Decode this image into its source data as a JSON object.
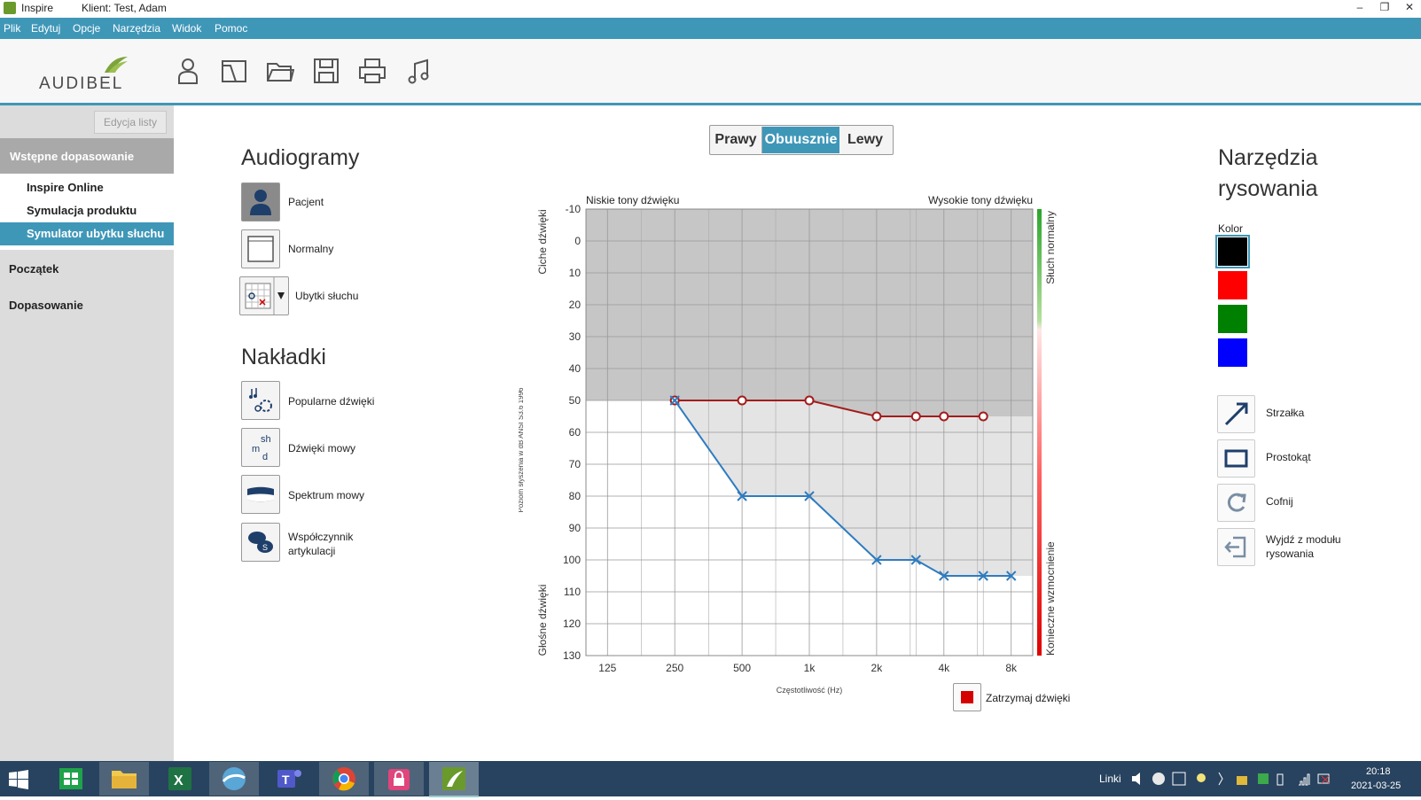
{
  "titlebar": {
    "app": "Inspire",
    "client": "Klient:  Test, Adam"
  },
  "menu": [
    "Plik",
    "Edytuj",
    "Opcje",
    "Narzędzia",
    "Widok",
    "Pomoc"
  ],
  "toolbar": {
    "logo": "AUDIBEL",
    "icons": [
      "user-icon",
      "frame-icon",
      "folder-icon",
      "save-icon",
      "print-icon",
      "music-note-icon"
    ]
  },
  "sidebar": {
    "edit_list": "Edycja listy",
    "section": "Wstępne dopasowanie",
    "items": [
      "Inspire Online",
      "Symulacja produktu",
      "Symulator ubytku słuchu"
    ],
    "start": "Początek",
    "fitting": "Dopasowanie"
  },
  "audiograms": {
    "title": "Audiogramy",
    "items": [
      "Pacjent",
      "Normalny",
      "Ubytki słuchu"
    ]
  },
  "overlays": {
    "title": "Nakładki",
    "items": [
      "Popularne dźwięki",
      "Dźwięki mowy",
      "Spektrum mowy",
      "Współczynnik artykulacji"
    ]
  },
  "ear_selector": {
    "right": "Prawy",
    "both": "Obuusznie",
    "left": "Lewy",
    "selected": "Obuusznie"
  },
  "chart_data": {
    "type": "line",
    "top_left_label": "Niskie tony dźwięku",
    "top_right_label": "Wysokie tony dźwięku",
    "y_top_label": "Ciche dźwięki",
    "y_bottom_label": "Głośne dźwięki",
    "y_axis_label": "Poziom słyszenia w dB ANSI S3.6 1996",
    "xlabel": "Częstotliwość (Hz)",
    "right_top_label": "Słuch normalny",
    "right_bottom_label": "Konieczne wzmocnienie",
    "x_ticks": [
      "125",
      "250",
      "500",
      "1k",
      "2k",
      "4k",
      "8k"
    ],
    "y_ticks": [
      "-10",
      "0",
      "10",
      "20",
      "30",
      "40",
      "50",
      "60",
      "70",
      "80",
      "90",
      "100",
      "110",
      "120",
      "130"
    ],
    "ylim": [
      -10,
      130
    ],
    "series": [
      {
        "marker": "o",
        "color": "#a31c1c",
        "x": [
          250,
          500,
          1000,
          2000,
          3000,
          4000,
          6000
        ],
        "values": [
          50,
          50,
          50,
          55,
          55,
          55,
          55
        ]
      },
      {
        "marker": "x",
        "color": "#2f7cc0",
        "x": [
          250,
          500,
          1000,
          2000,
          3000,
          4000,
          6000,
          8000
        ],
        "values": [
          50,
          80,
          80,
          100,
          100,
          105,
          105,
          105
        ]
      }
    ],
    "stop_sounds": "Zatrzymaj dźwięki"
  },
  "drawing_tools": {
    "title1": "Narzędzia",
    "title2": "rysowania",
    "color_label": "Kolor",
    "colors": [
      "#000000",
      "#ff0000",
      "#008000",
      "#0000ff"
    ],
    "tools": [
      "Strzałka",
      "Prostokąt",
      "Cofnij",
      "Wyjdź z modułu",
      "rysowania"
    ]
  },
  "taskbar": {
    "links": "Linki",
    "time": "20:18",
    "date": "2021-03-25"
  }
}
